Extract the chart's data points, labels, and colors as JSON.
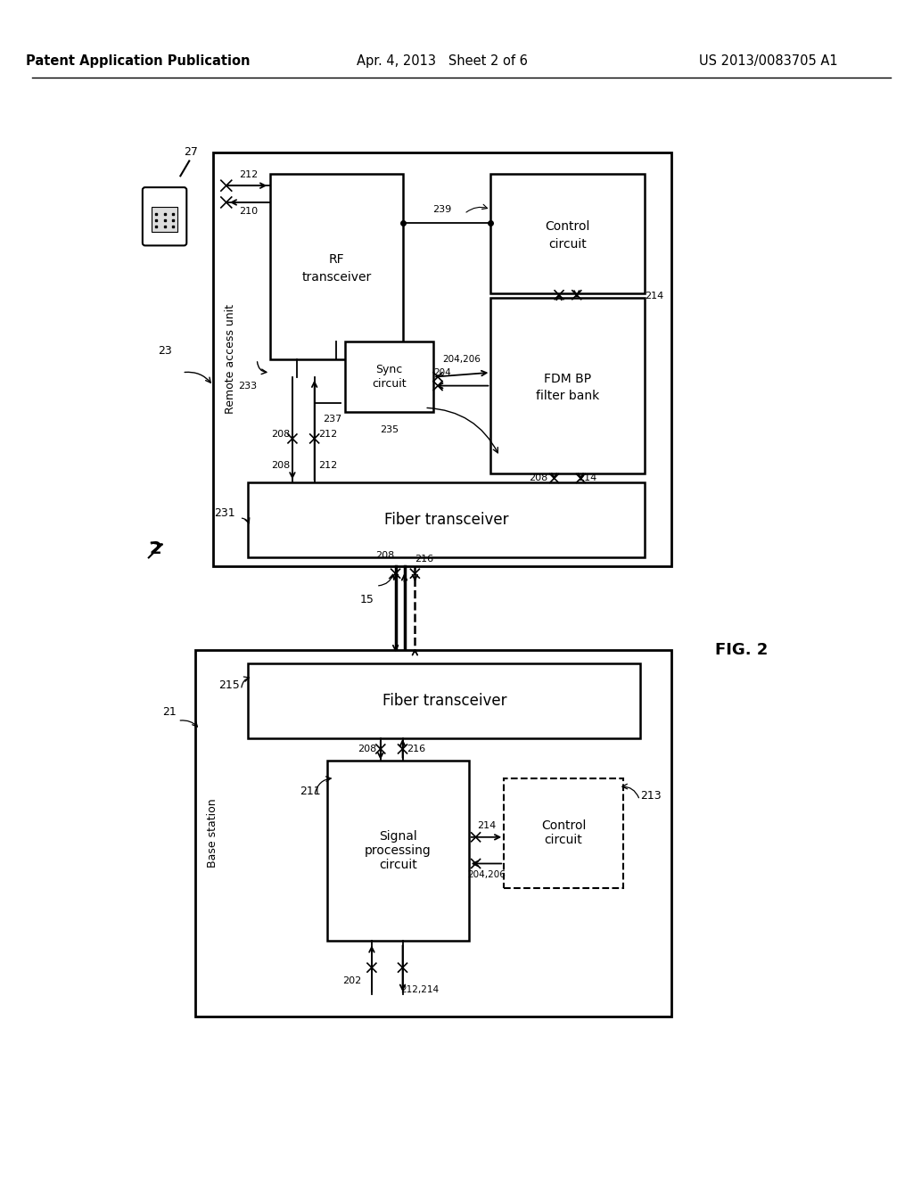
{
  "bg_color": "#ffffff",
  "header_left": "Patent Application Publication",
  "header_center": "Apr. 4, 2013   Sheet 2 of 6",
  "header_right": "US 2013/0083705 A1",
  "fig_label": "FIG. 2"
}
